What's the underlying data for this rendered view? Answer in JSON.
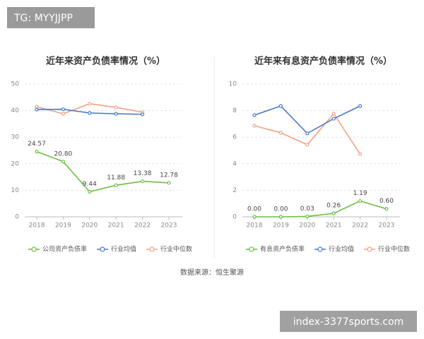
{
  "watermark": "TG: MYYJJPP",
  "source": "数据来源：恒生聚源",
  "badge": "index-3377sports.com",
  "chart_data": [
    {
      "type": "line",
      "title": "近年来资产负债率情况（%）",
      "categories": [
        "2018",
        "2019",
        "2020",
        "2021",
        "2022",
        "2023"
      ],
      "series": [
        {
          "name": "公司资产负债率",
          "color": "#6cbf3d",
          "values": [
            24.57,
            20.8,
            9.44,
            11.88,
            13.38,
            12.78
          ],
          "value_labels": [
            "24.57",
            "20.80",
            "9.44",
            "11.88",
            "13.38",
            "12.78"
          ]
        },
        {
          "name": "行业均值",
          "color": "#4a78c9",
          "values": [
            40.4,
            40.5,
            39.1,
            38.8,
            38.6,
            null
          ]
        },
        {
          "name": "行业中位数",
          "color": "#f0a283",
          "values": [
            41.5,
            38.8,
            42.6,
            41.2,
            39.4,
            null
          ]
        }
      ],
      "ylim": [
        0,
        50
      ],
      "yticks": [
        0,
        10,
        20,
        30,
        40,
        50
      ],
      "grid": true
    },
    {
      "type": "line",
      "title": "近年来有息资产负债率情况（%）",
      "categories": [
        "2018",
        "2019",
        "2020",
        "2021",
        "2022",
        "2023"
      ],
      "series": [
        {
          "name": "有息资产负债率",
          "color": "#6cbf3d",
          "values": [
            0,
            0,
            0.03,
            0.26,
            1.19,
            0.6
          ],
          "value_labels": [
            "0.00",
            "0.00",
            "0.03",
            "0.26",
            "1.19",
            "0.60"
          ]
        },
        {
          "name": "行业均值",
          "color": "#4a78c9",
          "values": [
            7.66,
            8.35,
            6.28,
            7.39,
            8.35,
            null
          ]
        },
        {
          "name": "行业中位数",
          "color": "#f0a283",
          "values": [
            6.86,
            6.33,
            5.43,
            7.77,
            4.73,
            null
          ]
        }
      ],
      "ylim": [
        0,
        10
      ],
      "yticks": [
        0,
        2,
        4,
        6,
        8,
        10
      ],
      "grid": true
    }
  ]
}
